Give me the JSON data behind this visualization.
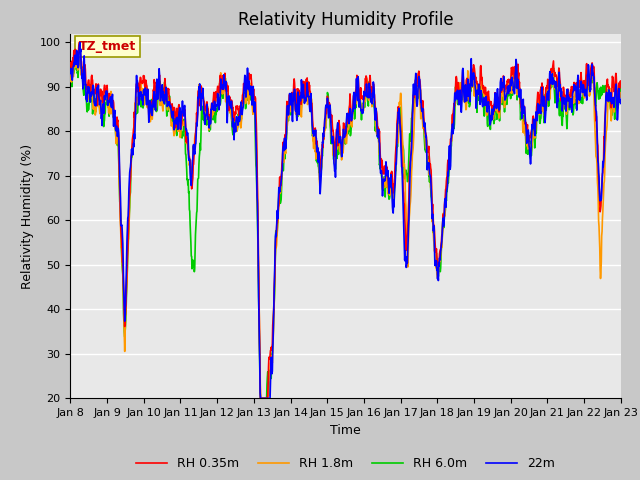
{
  "title": "Relativity Humidity Profile",
  "xlabel": "Time",
  "ylabel": "Relativity Humidity (%)",
  "ylim": [
    20,
    102
  ],
  "yticks": [
    20,
    30,
    40,
    50,
    60,
    70,
    80,
    90,
    100
  ],
  "xtick_labels": [
    "Jan 8",
    "Jan 9",
    "Jan 10",
    "Jan 11",
    "Jan 12",
    "Jan 13",
    "Jan 14",
    "Jan 15",
    "Jan 16",
    "Jan 17",
    "Jan 18",
    "Jan 19",
    "Jan 20",
    "Jan 21",
    "Jan 22",
    "Jan 23"
  ],
  "colors": {
    "RH 0.35m": "#ff0000",
    "RH 1.8m": "#ff9900",
    "RH 6.0m": "#00cc00",
    "22m": "#0000ff"
  },
  "legend_labels": [
    "RH 0.35m",
    "RH 1.8m",
    "RH 6.0m",
    "22m"
  ],
  "annotation_text": "TZ_tmet",
  "annotation_color": "#cc0000",
  "annotation_bg": "#ffffcc",
  "fig_bg": "#c8c8c8",
  "plot_bg": "#e8e8e8",
  "linewidth": 1.2,
  "title_fontsize": 12,
  "axis_fontsize": 9,
  "tick_fontsize": 8
}
